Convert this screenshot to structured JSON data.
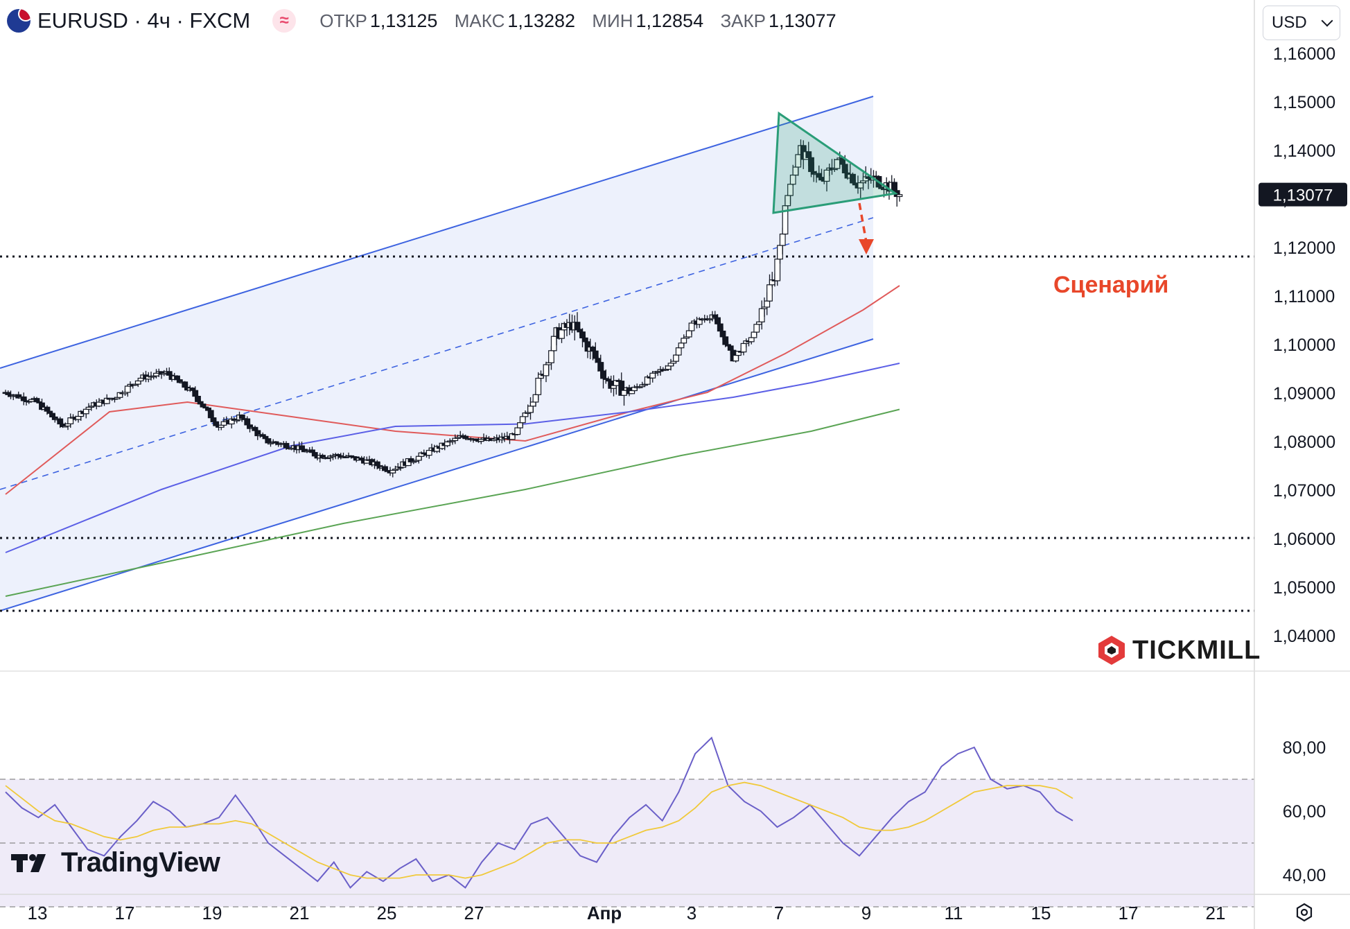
{
  "header": {
    "symbol": "EURUSD · 4ч · FXCM",
    "indicator_icon": "≈",
    "ohlc": [
      {
        "label": "ОТКР",
        "value": "1,13125"
      },
      {
        "label": "МАКС",
        "value": "1,13282"
      },
      {
        "label": "МИН",
        "value": "1,12854"
      },
      {
        "label": "ЗАКР",
        "value": "1,13077"
      }
    ]
  },
  "currency": "USD",
  "branding": {
    "tickmill": "TICKMILL",
    "tradingview": "TradingView"
  },
  "icons": [
    "eu-us-flag-icon",
    "indicator-icon",
    "chevron-down-icon",
    "settings-icon",
    "tickmill-logo-icon",
    "tradingview-logo-icon"
  ],
  "colors": {
    "up": "#ffffff",
    "down": "#131722",
    "ma_red": "#e05a5a",
    "ma_blue": "#5b5fe6",
    "ma_green": "#5aa454",
    "channel": "#3d63e0",
    "triangle": "#2a9d78",
    "scenario": "#e8472a",
    "rsi": "#6a5fc8",
    "rsi_ma": "#f0c93a"
  },
  "chart_data": [
    {
      "type": "candlestick",
      "title": "EURUSD · 4ч · FXCM",
      "x_ticks": [
        "13",
        "17",
        "19",
        "21",
        "25",
        "27",
        "Апр",
        "3",
        "7",
        "9",
        "11",
        "15",
        "17",
        "21"
      ],
      "ylim": [
        1.035,
        1.17
      ],
      "y_ticks": [
        "1,16000",
        "1,15000",
        "1,14000",
        "1,13000",
        "1,12000",
        "1,11000",
        "1,10000",
        "1,09000",
        "1,08000",
        "1,07000",
        "1,06000",
        "1,05000",
        "1,04000"
      ],
      "last_price": "1,13077",
      "horizontal_levels": [
        1.118,
        1.06,
        1.045
      ],
      "close_path": [
        [
          0,
          1.09
        ],
        [
          12,
          1.088
        ],
        [
          22,
          1.083
        ],
        [
          32,
          1.087
        ],
        [
          42,
          1.089
        ],
        [
          52,
          1.093
        ],
        [
          62,
          1.094
        ],
        [
          72,
          1.09
        ],
        [
          82,
          1.083
        ],
        [
          90,
          1.085
        ],
        [
          100,
          1.08
        ],
        [
          110,
          1.079
        ],
        [
          120,
          1.077
        ],
        [
          128,
          1.077
        ],
        [
          138,
          1.076
        ],
        [
          148,
          1.074
        ],
        [
          158,
          1.0765
        ],
        [
          168,
          1.079
        ],
        [
          176,
          1.081
        ],
        [
          186,
          1.08
        ],
        [
          196,
          1.081
        ],
        [
          206,
          1.093
        ],
        [
          212,
          1.102
        ],
        [
          218,
          1.104
        ],
        [
          226,
          1.098
        ],
        [
          232,
          1.092
        ],
        [
          240,
          1.09
        ],
        [
          248,
          1.093
        ],
        [
          256,
          1.096
        ],
        [
          264,
          1.104
        ],
        [
          272,
          1.106
        ],
        [
          280,
          1.097
        ],
        [
          288,
          1.102
        ],
        [
          296,
          1.114
        ],
        [
          302,
          1.134
        ],
        [
          306,
          1.14
        ],
        [
          314,
          1.133
        ],
        [
          320,
          1.138
        ],
        [
          328,
          1.133
        ],
        [
          334,
          1.134
        ],
        [
          340,
          1.1325
        ],
        [
          344,
          1.1308
        ]
      ],
      "candles_per_day": 6,
      "series": [
        {
          "name": "",
          "color": "ma_red",
          "points": [
            [
              0,
              1.069
            ],
            [
              40,
              1.086
            ],
            [
              70,
              1.088
            ],
            [
              110,
              1.085
            ],
            [
              150,
              1.082
            ],
            [
              200,
              1.08
            ],
            [
              240,
              1.086
            ],
            [
              270,
              1.09
            ],
            [
              300,
              1.098
            ],
            [
              330,
              1.107
            ],
            [
              344,
              1.112
            ]
          ]
        },
        {
          "name": "",
          "color": "ma_blue",
          "points": [
            [
              0,
              1.057
            ],
            [
              60,
              1.07
            ],
            [
              110,
              1.079
            ],
            [
              150,
              1.083
            ],
            [
              200,
              1.0835
            ],
            [
              240,
              1.086
            ],
            [
              280,
              1.089
            ],
            [
              310,
              1.092
            ],
            [
              344,
              1.096
            ]
          ]
        },
        {
          "name": "",
          "color": "ma_green",
          "points": [
            [
              0,
              1.048
            ],
            [
              70,
              1.056
            ],
            [
              130,
              1.063
            ],
            [
              200,
              1.07
            ],
            [
              260,
              1.077
            ],
            [
              310,
              1.082
            ],
            [
              344,
              1.0865
            ]
          ]
        }
      ],
      "channel": {
        "upper": [
          [
            0,
            1.095
          ],
          [
            1260,
            1.151
          ]
        ],
        "middle": [
          [
            0,
            1.07
          ],
          [
            1260,
            1.126
          ]
        ],
        "lower": [
          [
            0,
            1.045
          ],
          [
            1260,
            1.101
          ]
        ]
      },
      "triangle": [
        [
          1124,
          1.1475
        ],
        [
          1292,
          1.131
        ],
        [
          1116,
          1.127
        ]
      ],
      "annotation": {
        "text": "Сценарий",
        "arrow_from": [
          1240,
          1.129
        ],
        "arrow_to": [
          1250,
          1.119
        ]
      }
    },
    {
      "type": "line",
      "title": "",
      "ylim": [
        25,
        88
      ],
      "y_ticks": [
        "80,00",
        "60,00",
        "40,00"
      ],
      "bands": [
        70,
        50,
        30
      ],
      "series": [
        {
          "name": "",
          "color": "rsi",
          "values": [
            66,
            61,
            58,
            62,
            55,
            48,
            46,
            52,
            57,
            63,
            60,
            55,
            56,
            58,
            65,
            58,
            50,
            46,
            42,
            38,
            44,
            36,
            41,
            38,
            42,
            45,
            38,
            40,
            36,
            44,
            50,
            48,
            56,
            58,
            52,
            46,
            44,
            52,
            58,
            62,
            57,
            66,
            78,
            83,
            68,
            63,
            60,
            55,
            58,
            62,
            56,
            50,
            46,
            52,
            58,
            63,
            66,
            74,
            78,
            80,
            70,
            67,
            68,
            66,
            60,
            57
          ]
        },
        {
          "name": "",
          "color": "rsi_ma",
          "values": [
            68,
            64,
            60,
            57,
            56,
            54,
            52,
            51,
            52,
            54,
            55,
            55,
            56,
            56,
            57,
            56,
            53,
            50,
            47,
            44,
            42,
            40,
            39,
            39,
            39,
            40,
            40,
            40,
            39,
            40,
            42,
            44,
            47,
            50,
            51,
            51,
            50,
            50,
            52,
            54,
            55,
            57,
            61,
            66,
            68,
            69,
            68,
            66,
            64,
            62,
            60,
            58,
            55,
            54,
            54,
            55,
            57,
            60,
            63,
            66,
            67,
            68,
            68,
            68,
            67,
            64
          ]
        }
      ]
    }
  ]
}
